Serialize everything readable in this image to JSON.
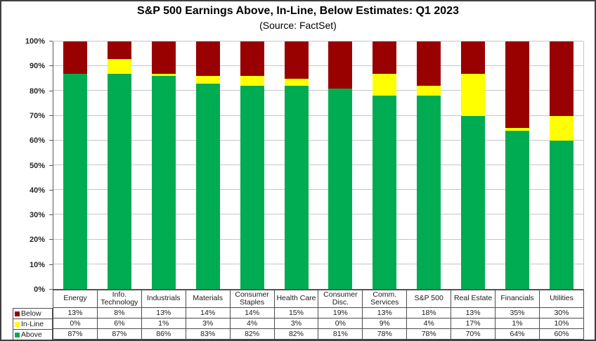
{
  "title": "S&P 500 Earnings Above, In-Line, Below Estimates: Q1 2023",
  "subtitle": "(Source: FactSet)",
  "colors": {
    "below": "#990000",
    "inline": "#FFFF00",
    "above": "#00AC52",
    "gridline": "#c6c6c6",
    "axis": "#595959",
    "table_border": "#4d4d4d",
    "frame_border": "#3f3f3f"
  },
  "chart_data": {
    "type": "bar",
    "stacked": true,
    "title": "S&P 500 Earnings Above, In-Line, Below Estimates: Q1 2023",
    "subtitle": "(Source: FactSet)",
    "categories": [
      "Energy",
      "Info. Technology",
      "Industrials",
      "Materials",
      "Consumer Staples",
      "Health Care",
      "Consumer Disc.",
      "Comm. Services",
      "S&P 500",
      "Real Estate",
      "Financials",
      "Utilities"
    ],
    "series": [
      {
        "name": "Below",
        "color": "#990000",
        "values": [
          13,
          8,
          13,
          14,
          14,
          15,
          19,
          13,
          18,
          13,
          35,
          30
        ]
      },
      {
        "name": "In-Line",
        "color": "#FFFF00",
        "values": [
          0,
          6,
          1,
          3,
          4,
          3,
          0,
          9,
          4,
          17,
          1,
          10
        ]
      },
      {
        "name": "Above",
        "color": "#00AC52",
        "values": [
          87,
          87,
          86,
          83,
          82,
          82,
          81,
          78,
          78,
          70,
          64,
          60
        ]
      }
    ],
    "value_suffix": "%",
    "ylim": [
      0,
      100
    ],
    "ytick_step": 10,
    "ytick_labels": [
      "0%",
      "10%",
      "20%",
      "30%",
      "40%",
      "50%",
      "60%",
      "70%",
      "80%",
      "90%",
      "100%"
    ],
    "grid": "horizontal-major",
    "legend_position": "data-table-left",
    "xlabel": "",
    "ylabel": ""
  }
}
